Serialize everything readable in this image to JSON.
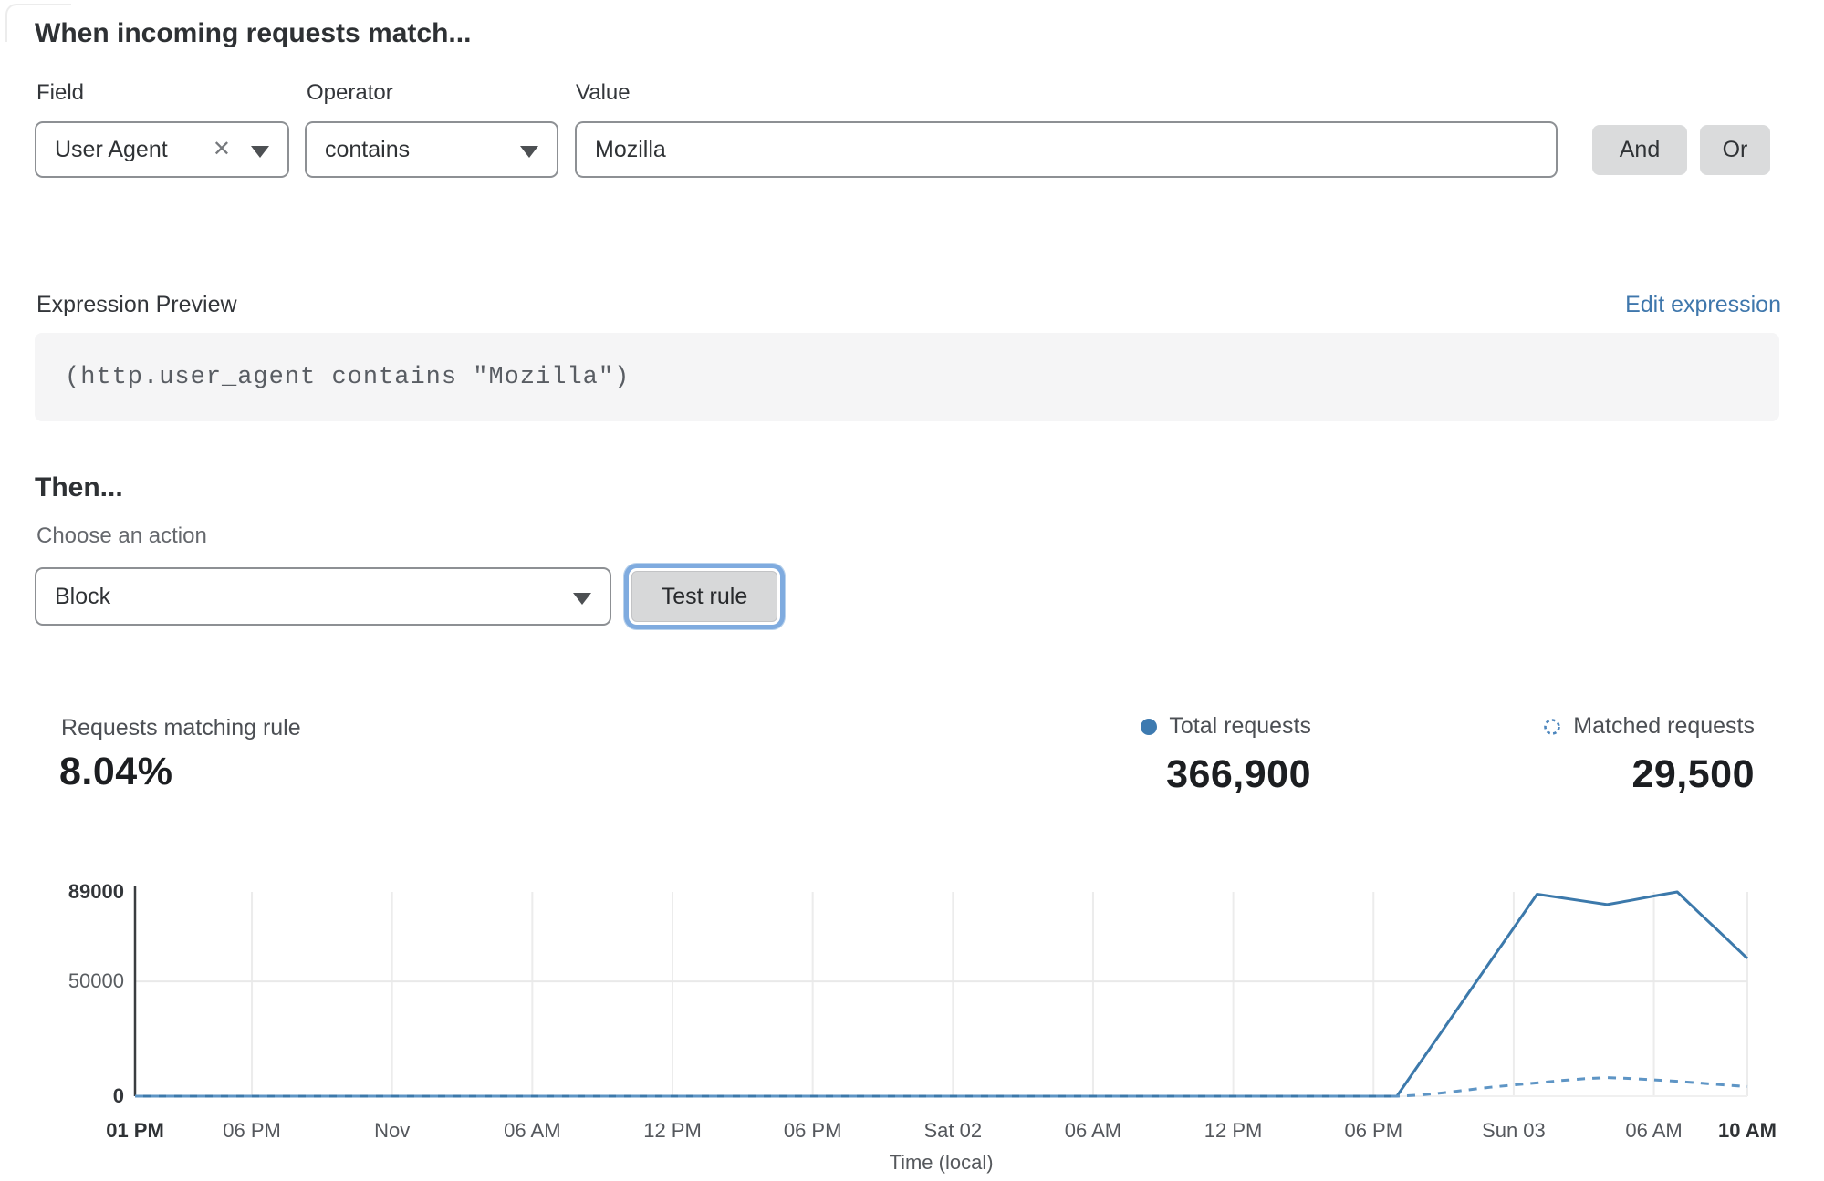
{
  "header": {
    "title": "When incoming requests match..."
  },
  "condition": {
    "field": {
      "label": "Field",
      "value": "User Agent",
      "clear_icon": "✕"
    },
    "operator": {
      "label": "Operator",
      "value": "contains"
    },
    "value": {
      "label": "Value",
      "text": "Mozilla"
    },
    "connectors": {
      "and_label": "And",
      "or_label": "Or"
    }
  },
  "expression": {
    "label": "Expression Preview",
    "edit_link": "Edit expression",
    "code": "(http.user_agent contains \"Mozilla\")"
  },
  "action": {
    "heading": "Then...",
    "choose_label": "Choose an action",
    "selected_action": "Block",
    "test_button_label": "Test rule"
  },
  "stats": {
    "matching": {
      "label": "Requests matching rule",
      "value": "8.04%"
    },
    "total": {
      "label": "Total requests",
      "value": "366,900"
    },
    "matched": {
      "label": "Matched requests",
      "value": "29,500"
    }
  },
  "colors": {
    "total_line": "#3c79ab",
    "matched_line": "#5e95c5",
    "link_blue": "#3f77ac",
    "focus_ring": "#7fabdf",
    "grid": "#ececec",
    "axis": "#3a3d40"
  },
  "chart_data": {
    "type": "line",
    "xlabel": "Time (local)",
    "ylabel": "",
    "x_unit": "hours from Thu Oct 31 01 PM to Sun Nov 03 10 AM",
    "x_range": [
      0,
      69
    ],
    "ylim": [
      0,
      89000
    ],
    "grid": true,
    "legend_position": "top-right-stats",
    "y_ticks": [
      {
        "label": "89000",
        "value": 89000,
        "bold": true
      },
      {
        "label": "50000",
        "value": 50000,
        "bold": false
      },
      {
        "label": "0",
        "value": 0,
        "bold": true
      }
    ],
    "x_ticks": [
      {
        "label": "01 PM",
        "hour": 0,
        "bold": true
      },
      {
        "label": "06 PM",
        "hour": 5,
        "bold": false
      },
      {
        "label": "Nov",
        "hour": 11,
        "bold": false
      },
      {
        "label": "06 AM",
        "hour": 17,
        "bold": false
      },
      {
        "label": "12 PM",
        "hour": 23,
        "bold": false
      },
      {
        "label": "06 PM",
        "hour": 29,
        "bold": false
      },
      {
        "label": "Sat 02",
        "hour": 35,
        "bold": false
      },
      {
        "label": "06 AM",
        "hour": 41,
        "bold": false
      },
      {
        "label": "12 PM",
        "hour": 47,
        "bold": false
      },
      {
        "label": "06 PM",
        "hour": 53,
        "bold": false
      },
      {
        "label": "Sun 03",
        "hour": 59,
        "bold": false
      },
      {
        "label": "06 AM",
        "hour": 65,
        "bold": false
      },
      {
        "label": "10 AM",
        "hour": 69,
        "bold": true
      }
    ],
    "series": [
      {
        "name": "Total requests",
        "style": "solid",
        "color": "#3c79ab",
        "points": [
          [
            0,
            0
          ],
          [
            5,
            0
          ],
          [
            11,
            0
          ],
          [
            17,
            0
          ],
          [
            23,
            0
          ],
          [
            29,
            0
          ],
          [
            35,
            0
          ],
          [
            41,
            0
          ],
          [
            47,
            0
          ],
          [
            53,
            0
          ],
          [
            54,
            0
          ],
          [
            55,
            14700
          ],
          [
            56,
            29300
          ],
          [
            57,
            44000
          ],
          [
            58,
            58700
          ],
          [
            59,
            73300
          ],
          [
            60,
            88000
          ],
          [
            61,
            86500
          ],
          [
            62,
            85000
          ],
          [
            63,
            83500
          ],
          [
            64,
            85300
          ],
          [
            65,
            87200
          ],
          [
            66,
            89000
          ],
          [
            67,
            79300
          ],
          [
            68,
            69700
          ],
          [
            69,
            60000
          ]
        ]
      },
      {
        "name": "Matched requests",
        "style": "dashed",
        "color": "#5e95c5",
        "points": [
          [
            0,
            0
          ],
          [
            5,
            0
          ],
          [
            11,
            0
          ],
          [
            17,
            0
          ],
          [
            23,
            0
          ],
          [
            29,
            0
          ],
          [
            35,
            0
          ],
          [
            41,
            0
          ],
          [
            47,
            0
          ],
          [
            53,
            0
          ],
          [
            54,
            0
          ],
          [
            55,
            500
          ],
          [
            56,
            1500
          ],
          [
            57,
            2700
          ],
          [
            58,
            3900
          ],
          [
            59,
            4900
          ],
          [
            60,
            5800
          ],
          [
            61,
            6800
          ],
          [
            62,
            7600
          ],
          [
            63,
            8100
          ],
          [
            64,
            7700
          ],
          [
            65,
            7100
          ],
          [
            66,
            6500
          ],
          [
            67,
            5700
          ],
          [
            68,
            4900
          ],
          [
            69,
            4200
          ]
        ]
      }
    ]
  }
}
